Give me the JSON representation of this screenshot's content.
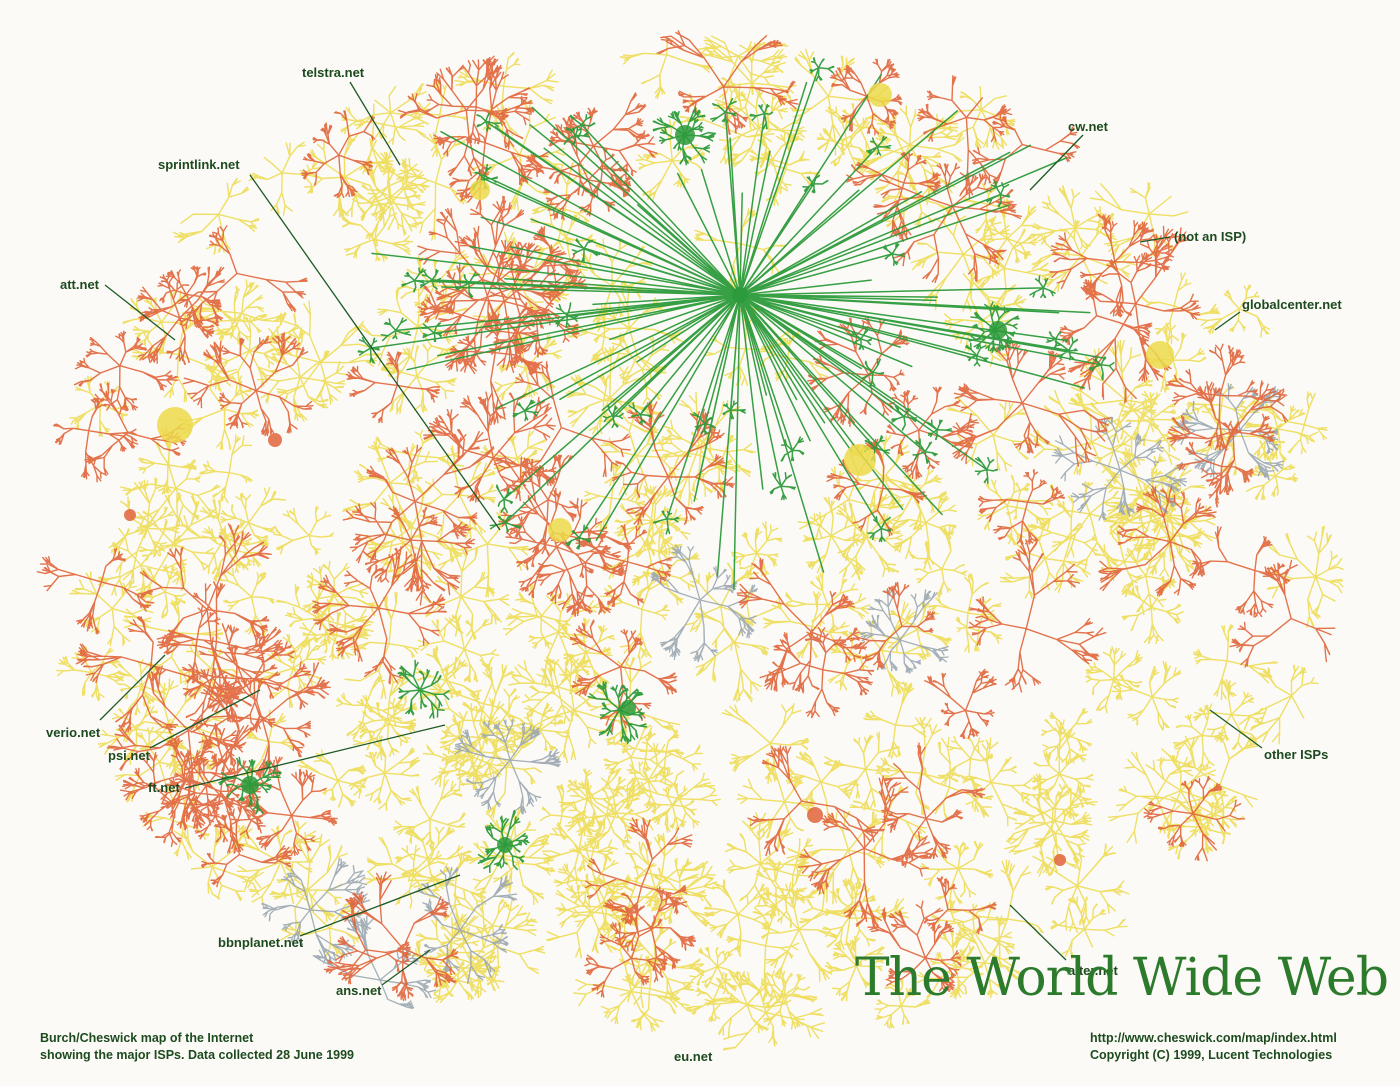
{
  "title": "The World Wide Web",
  "caption_left": {
    "line1": "Burch/Cheswick map of the Internet",
    "line2": "showing the major ISPs.  Data collected 28 June 1999"
  },
  "caption_right": {
    "line1": "http://www.cheswick.com/map/index.html",
    "line2": "Copyright (C) 1999, Lucent Technologies"
  },
  "labels": {
    "telstra": "telstra.net",
    "cw": "cw.net",
    "sprintlink": "sprintlink.net",
    "not_isp": "(not an ISP)",
    "att": "att.net",
    "globalcenter": "globalcenter.net",
    "verio": "verio.net",
    "psi": "psi.net",
    "other": "other ISPs",
    "ft": "ft.net",
    "bbnplanet": "bbnplanet.net",
    "alter": "alter.net",
    "ans": "ans.net",
    "eu": "eu.net"
  },
  "colors": {
    "background": "#fbfaf6",
    "yellow": "#ecd94a",
    "orange": "#e0643a",
    "green": "#2c9a3a",
    "grey": "#9aa6b0",
    "label": "#1d4a1f",
    "title": "#2c7a2c"
  }
}
